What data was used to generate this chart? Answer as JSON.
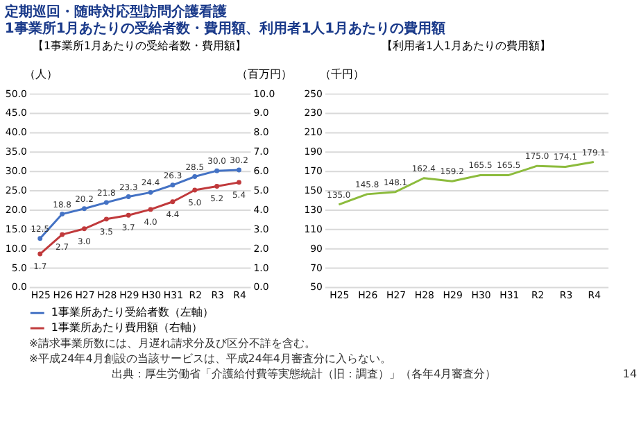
{
  "chart_data": [
    {
      "type": "line",
      "title": "定期巡回・随時対応型訪問介護看護　1事業所1月あたりの受給者数・費用額、利用者1人1月あたりの費用額",
      "subtitle": "【1事業所1月あたりの受給者数・費用額】",
      "ylabel": "（人）",
      "y2label": "（百万円）",
      "categories": [
        "H25",
        "H26",
        "H27",
        "H28",
        "H29",
        "H30",
        "H31",
        "R2",
        "R3",
        "R4"
      ],
      "series": [
        {
          "name": "1事業所あたり受給者数（左軸）",
          "color": "#4472c4",
          "values": [
            12.5,
            18.8,
            20.2,
            21.8,
            23.3,
            24.4,
            26.3,
            28.5,
            30.0,
            30.2
          ],
          "value_labels": [
            "12.5",
            "18.8",
            "20.2",
            "21.8",
            "23.3",
            "24.4",
            "26.3",
            "28.5",
            "30.0",
            "30.2"
          ]
        },
        {
          "name": "1事業所あたり費用額（右軸）",
          "color": "#c0393b",
          "axis": "y2",
          "values": [
            1.7,
            2.7,
            3.0,
            3.5,
            3.7,
            4.0,
            4.4,
            5.0,
            5.2,
            5.4
          ],
          "value_labels": [
            "1.7",
            "2.7",
            "3.0",
            "3.5",
            "3.7",
            "4.0",
            "4.4",
            "5.0",
            "5.2",
            "5.4"
          ]
        }
      ],
      "ylim": [
        0,
        50
      ],
      "yticks": [
        {
          "value": 0,
          "label": "0.0"
        },
        {
          "value": 5,
          "label": "5.0"
        },
        {
          "value": 10,
          "label": "10.0"
        },
        {
          "value": 15,
          "label": "15.0"
        },
        {
          "value": 20,
          "label": "20.0"
        },
        {
          "value": 25,
          "label": "25.0"
        },
        {
          "value": 30,
          "label": "30.0"
        },
        {
          "value": 35,
          "label": "35.0"
        },
        {
          "value": 40,
          "label": "40.0"
        },
        {
          "value": 45,
          "label": "45.0"
        },
        {
          "value": 50,
          "label": "50.0"
        }
      ],
      "y2lim": [
        0,
        10
      ],
      "y2ticks": [
        {
          "value": 0,
          "label": "0.0"
        },
        {
          "value": 1,
          "label": "1.0"
        },
        {
          "value": 2,
          "label": "2.0"
        },
        {
          "value": 3,
          "label": "3.0"
        },
        {
          "value": 4,
          "label": "4.0"
        },
        {
          "value": 5,
          "label": "5.0"
        },
        {
          "value": 6,
          "label": "6.0"
        },
        {
          "value": 7,
          "label": "7.0"
        },
        {
          "value": 8,
          "label": "8.0"
        },
        {
          "value": 9,
          "label": "9.0"
        },
        {
          "value": 10,
          "label": "10.0"
        }
      ],
      "grid": "y",
      "legend": "bottom",
      "marker": "circle",
      "annotations": [
        "※請求事業所数には、月遅れ請求分及び区分不詳を含む。",
        "※平成24年4月創設の当該サービスは、平成24年4月審査分に入らない。"
      ]
    },
    {
      "type": "line",
      "title": "【利用者1人1月あたりの費用額】",
      "ylabel": "（千円）",
      "categories": [
        "H25",
        "H26",
        "H27",
        "H28",
        "H29",
        "H30",
        "H31",
        "R2",
        "R3",
        "R4"
      ],
      "series": [
        {
          "color": "#8cbb3c",
          "values": [
            135.0,
            145.8,
            148.1,
            162.4,
            159.2,
            165.5,
            165.5,
            175.0,
            174.1,
            179.1
          ],
          "value_labels": [
            "135.0",
            "145.8",
            "148.1",
            "162.4",
            "159.2",
            "165.5",
            "165.5",
            "175.0",
            "174.1",
            "179.1"
          ]
        }
      ],
      "ylim": [
        50,
        250
      ],
      "yticks": [
        50,
        70,
        90,
        110,
        130,
        150,
        170,
        190,
        210,
        230,
        250
      ],
      "grid": "y",
      "annotations": [
        "出典：厚生労働省「介護給付費等実態統計（旧：調査）」（各年4月審査分）",
        "14"
      ]
    }
  ]
}
